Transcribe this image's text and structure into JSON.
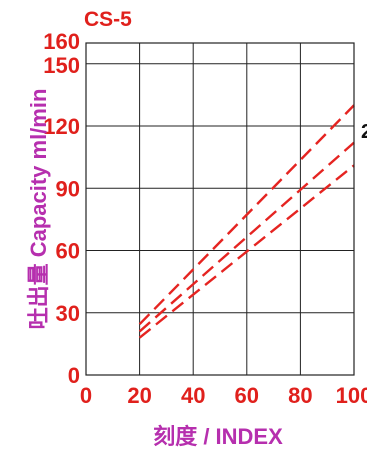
{
  "chart_data": {
    "type": "line",
    "title": "CS-5",
    "ylabel": "吐出量 Capacity ml/min",
    "xlabel": "刻度 / INDEX",
    "xlim": [
      0,
      100
    ],
    "ylim": [
      0,
      160
    ],
    "xticks": [
      "0",
      "20",
      "40",
      "60",
      "80",
      "100"
    ],
    "yticks": [
      "0",
      "30",
      "60",
      "90",
      "120",
      "150",
      "160"
    ],
    "grid": true,
    "line_color": "#e52421",
    "line_style": "dashed",
    "series": [
      {
        "x": [
          20,
          100
        ],
        "values": [
          24.5,
          130
        ]
      },
      {
        "x": [
          20,
          100
        ],
        "values": [
          21,
          112
        ]
      },
      {
        "x": [
          20,
          100
        ],
        "values": [
          18,
          101
        ]
      }
    ],
    "annotations": [
      "2"
    ]
  }
}
